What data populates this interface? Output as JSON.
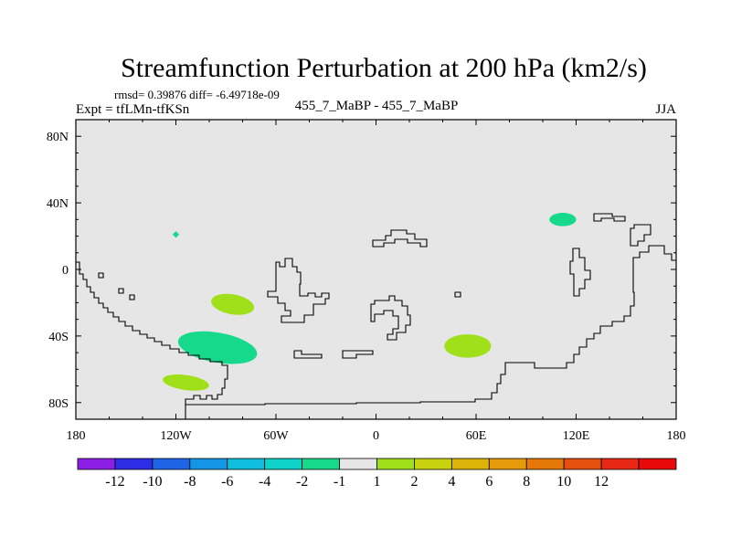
{
  "chart_data": {
    "type": "contour_map",
    "title": "Streamfunction Perturbation at 200 hPa (km2/s)",
    "stats_line": "rmsd= 0.39876 diff= -6.49718e-09",
    "experiment_label": "Expt = tfLMn-tfKSn",
    "case_label": "455_7_MaBP - 455_7_MaBP",
    "season_label": "JJA",
    "x_axis": {
      "range": [
        0,
        360
      ],
      "ticks": [
        0,
        60,
        120,
        180,
        240,
        300,
        360
      ],
      "tick_labels": [
        "180",
        "120W",
        "60W",
        "0",
        "60E",
        "120E",
        "180"
      ]
    },
    "y_axis": {
      "range": [
        -90,
        90
      ],
      "ticks": [
        80,
        40,
        0,
        -40,
        -80
      ],
      "tick_labels": [
        "80N",
        "40N",
        "0",
        "40S",
        "80S"
      ]
    },
    "background_color": "#e6e6e6",
    "features": [
      {
        "name": "diamond-near-120W-20N",
        "lon": 60,
        "lat": 21,
        "rx": 2,
        "ry": 2,
        "level": "-2",
        "color": "#17d98c",
        "shape": "diamond"
      },
      {
        "name": "blob-east-asia",
        "lon": 292,
        "lat": 30,
        "rx": 8,
        "ry": 4,
        "level": "-2",
        "color": "#17d98c"
      },
      {
        "name": "blob-south-pacific-central",
        "lon": 94,
        "lat": -21,
        "rx": 13,
        "ry": 6,
        "level": "1",
        "color": "#a0e01a",
        "rotate": 10
      },
      {
        "name": "blob-south-pacific-large",
        "lon": 85,
        "lat": -47,
        "rx": 24,
        "ry": 9,
        "level": "-2",
        "color": "#17d98c",
        "rotate": 10
      },
      {
        "name": "blob-southern-ocean",
        "lon": 66,
        "lat": -68,
        "rx": 14,
        "ry": 4.5,
        "level": "1",
        "color": "#a0e01a",
        "rotate": 8
      },
      {
        "name": "blob-indian-ocean",
        "lon": 235,
        "lat": -46,
        "rx": 14,
        "ry": 7,
        "level": "1",
        "color": "#a0e01a"
      }
    ],
    "legend": {
      "colors": [
        "#8c1ee6",
        "#2d2de6",
        "#1e64e6",
        "#1496e6",
        "#0fbedc",
        "#0fd2c8",
        "#17d98c",
        "#e6e6e6",
        "#a0e01a",
        "#c8d20f",
        "#dcb40a",
        "#e69b0a",
        "#e6780a",
        "#e6500f",
        "#e62814",
        "#e60a0a"
      ],
      "labels": [
        "-12",
        "-10",
        "-8",
        "-6",
        "-4",
        "-2",
        "-1",
        "1",
        "2",
        "4",
        "6",
        "8",
        "10",
        "12"
      ]
    }
  }
}
